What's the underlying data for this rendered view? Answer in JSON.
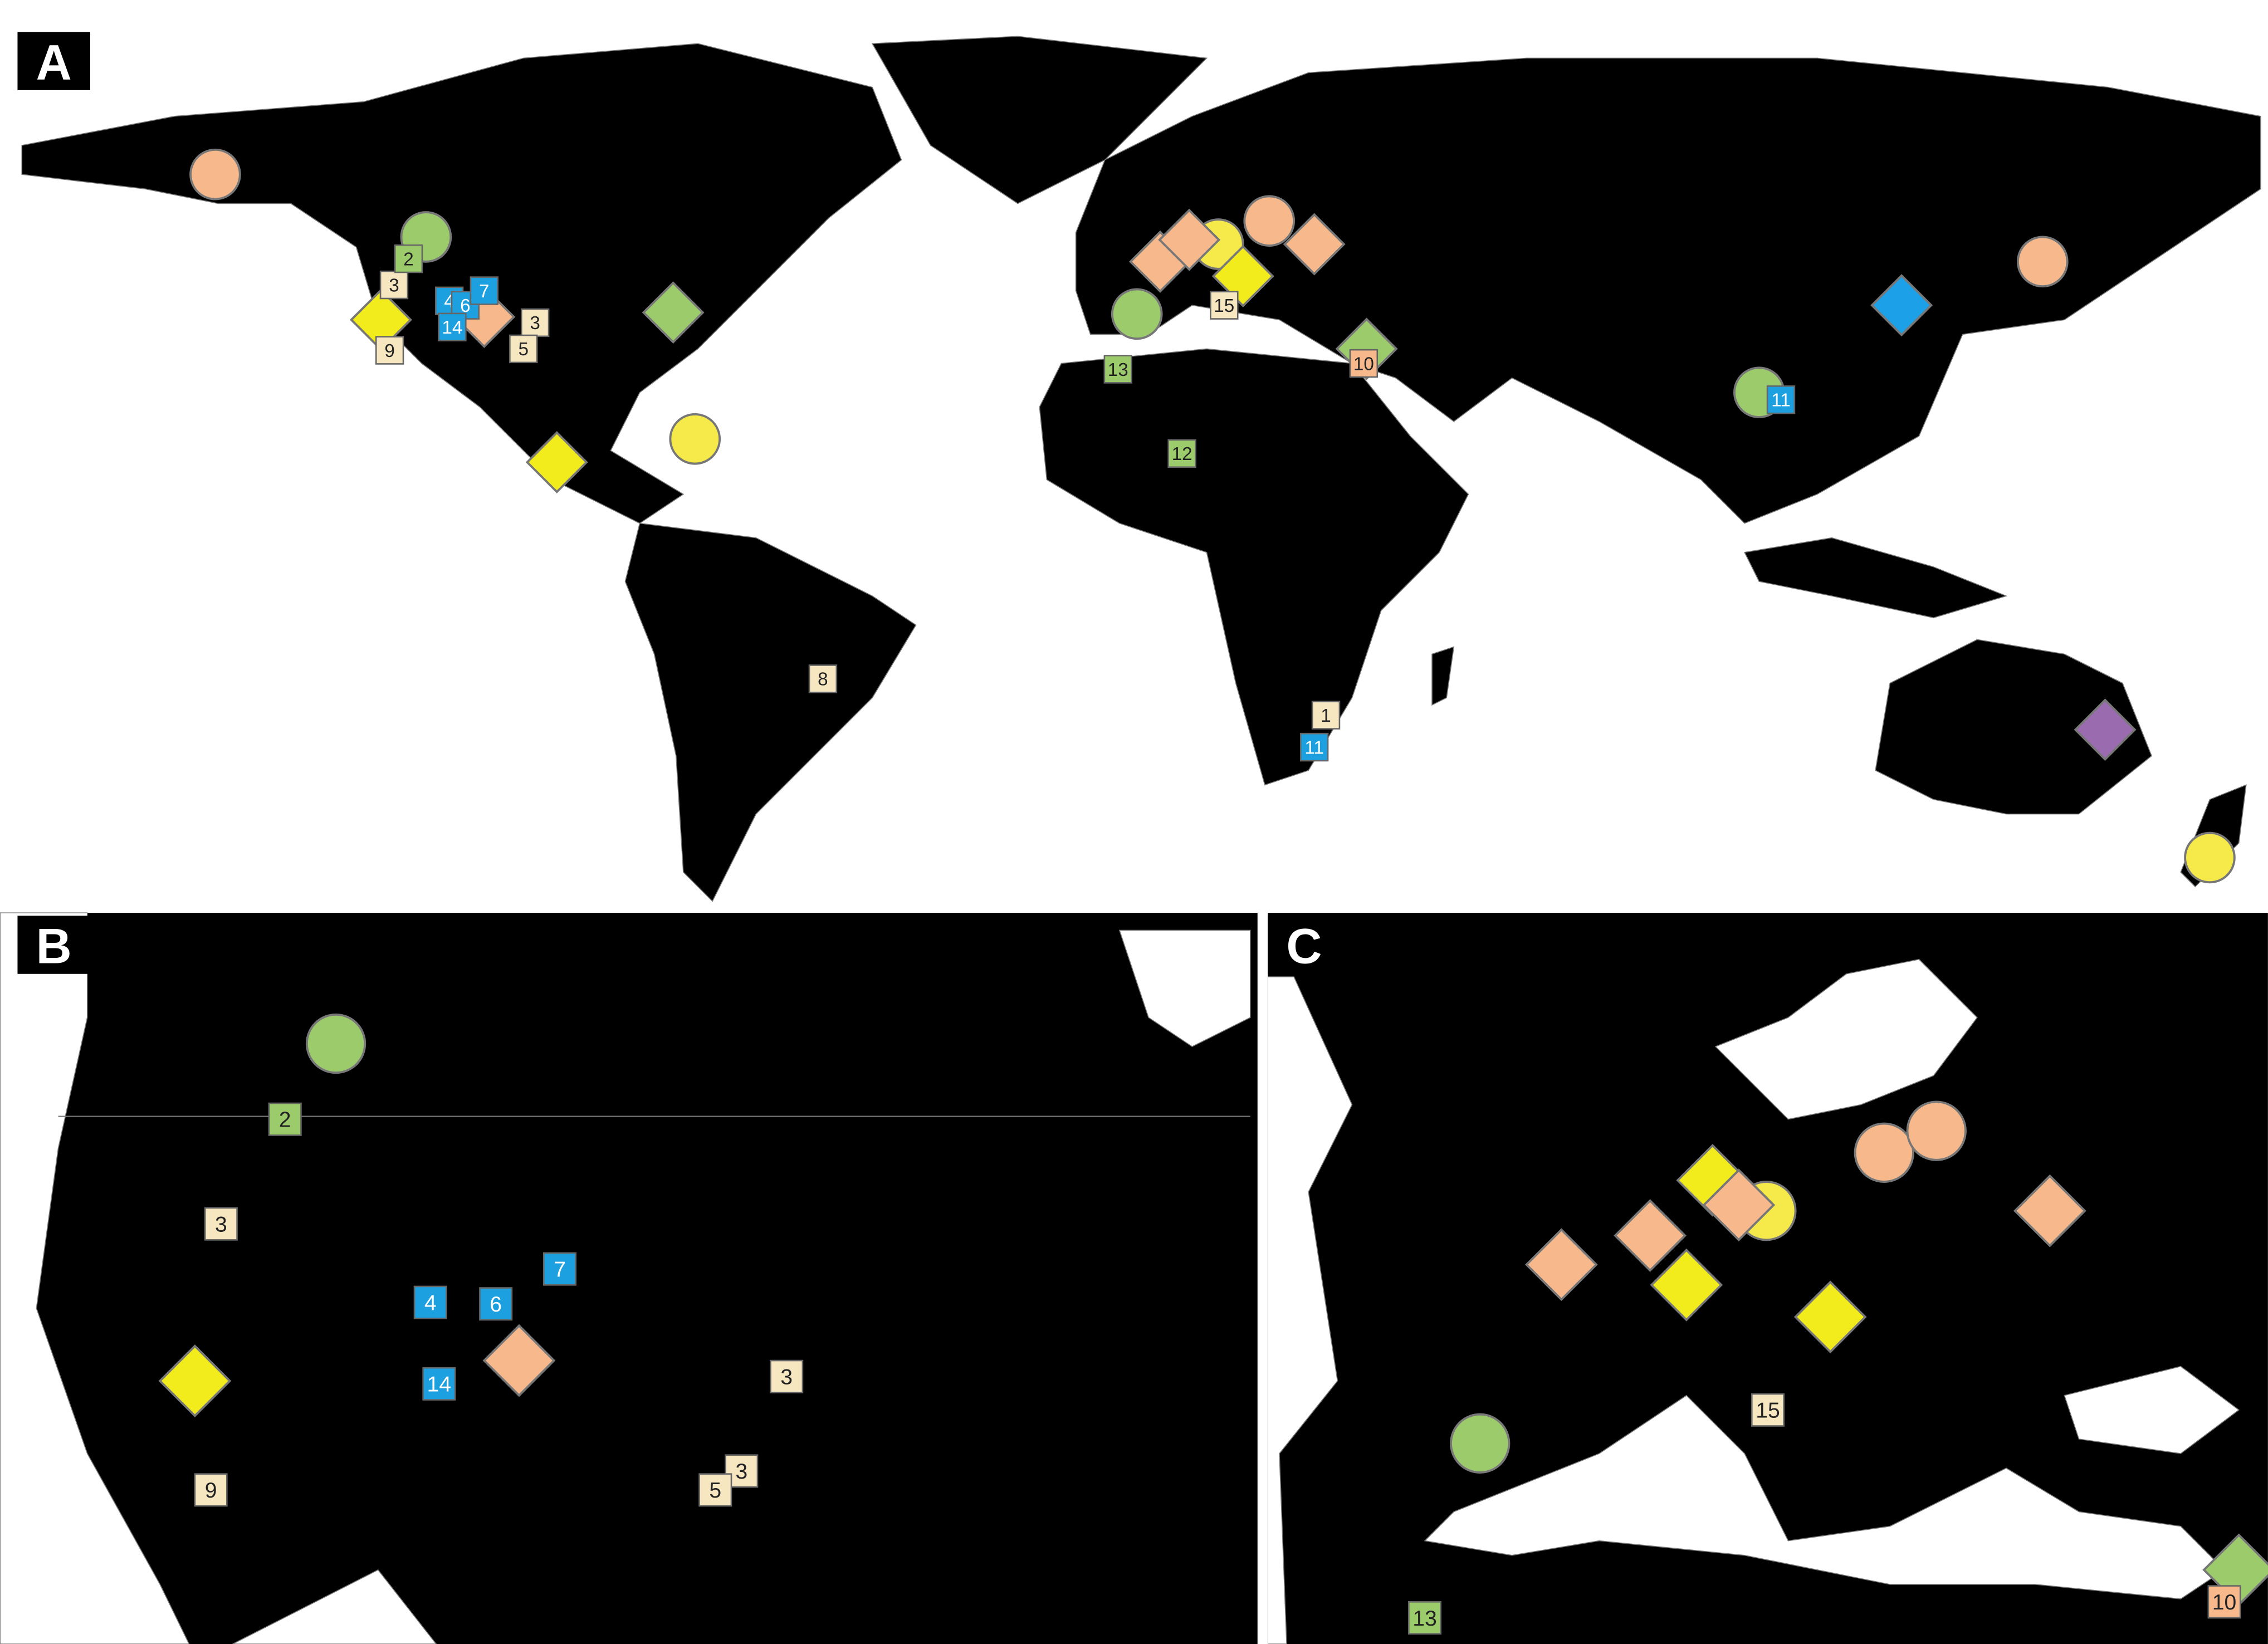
{
  "panels": [
    {
      "label": "A",
      "markers": [
        {
          "shape": "circle",
          "color": "#f7b98b"
        },
        {
          "shape": "circle",
          "color": "#9ccb6b"
        },
        {
          "shape": "circle",
          "color": "#f7b98b"
        },
        {
          "shape": "circle",
          "color": "#f5ea4a"
        },
        {
          "shape": "circle",
          "color": "#f7b98b"
        },
        {
          "shape": "circle",
          "color": "#9ccb6b"
        },
        {
          "shape": "circle",
          "color": "#f5ea4a"
        },
        {
          "shape": "circle",
          "color": "#9ccb6b"
        },
        {
          "shape": "circle",
          "color": "#f5ea4a"
        },
        {
          "shape": "diamond",
          "color": "#9ccb6b"
        },
        {
          "shape": "diamond",
          "color": "#f2ec1c"
        },
        {
          "shape": "diamond",
          "color": "#f7b98b"
        },
        {
          "shape": "diamond",
          "color": "#f7b98b"
        },
        {
          "shape": "diamond",
          "color": "#f7b98b"
        },
        {
          "shape": "diamond",
          "color": "#f7b98b"
        },
        {
          "shape": "diamond",
          "color": "#f2ec1c"
        },
        {
          "shape": "diamond",
          "color": "#9ccb6b"
        },
        {
          "shape": "diamond",
          "color": "#1ca0e8"
        },
        {
          "shape": "diamond",
          "color": "#9b6bb0"
        },
        {
          "shape": "diamond",
          "color": "#f2ec1c"
        }
      ],
      "tags": [
        {
          "text": "3",
          "color": "#f7e7c1"
        },
        {
          "text": "2",
          "color": "#9ccb6b"
        },
        {
          "text": "4",
          "color": "#1ca0e0"
        },
        {
          "text": "6",
          "color": "#1ca0e0"
        },
        {
          "text": "7",
          "color": "#1ca0e0"
        },
        {
          "text": "14",
          "color": "#1ca0e0"
        },
        {
          "text": "3",
          "color": "#f7e7c1"
        },
        {
          "text": "5",
          "color": "#f7e7c1"
        },
        {
          "text": "9",
          "color": "#f7e7c1"
        },
        {
          "text": "15",
          "color": "#f7e7c1"
        },
        {
          "text": "10",
          "color": "#f7b98b"
        },
        {
          "text": "13",
          "color": "#9ccb6b"
        },
        {
          "text": "12",
          "color": "#9ccb6b"
        },
        {
          "text": "11",
          "color": "#1ca0e0"
        },
        {
          "text": "8",
          "color": "#f7e7c1"
        },
        {
          "text": "1",
          "color": "#f7e7c1"
        },
        {
          "text": "11",
          "color": "#1ca0e0"
        }
      ]
    },
    {
      "label": "B",
      "markers": [
        {
          "shape": "circle",
          "color": "#9ccb6b"
        },
        {
          "shape": "diamond",
          "color": "#f2ec1c"
        },
        {
          "shape": "diamond",
          "color": "#f7b98b"
        }
      ],
      "tags": [
        {
          "text": "2",
          "color": "#9ccb6b"
        },
        {
          "text": "3",
          "color": "#f7e7c1"
        },
        {
          "text": "7",
          "color": "#1ca0e0"
        },
        {
          "text": "4",
          "color": "#1ca0e0"
        },
        {
          "text": "6",
          "color": "#1ca0e0"
        },
        {
          "text": "14",
          "color": "#1ca0e0"
        },
        {
          "text": "3",
          "color": "#f7e7c1"
        },
        {
          "text": "3",
          "color": "#f7e7c1"
        },
        {
          "text": "5",
          "color": "#f7e7c1"
        },
        {
          "text": "9",
          "color": "#f7e7c1"
        }
      ]
    },
    {
      "label": "C",
      "markers": [
        {
          "shape": "circle",
          "color": "#f7b98b"
        },
        {
          "shape": "circle",
          "color": "#f7b98b"
        },
        {
          "shape": "circle",
          "color": "#f5ea4a"
        },
        {
          "shape": "circle",
          "color": "#9ccb6b"
        },
        {
          "shape": "diamond",
          "color": "#f2ec1c"
        },
        {
          "shape": "diamond",
          "color": "#f7b98b"
        },
        {
          "shape": "diamond",
          "color": "#f7b98b"
        },
        {
          "shape": "diamond",
          "color": "#f7b98b"
        },
        {
          "shape": "diamond",
          "color": "#f2ec1c"
        },
        {
          "shape": "diamond",
          "color": "#f2ec1c"
        },
        {
          "shape": "diamond",
          "color": "#f7b98b"
        },
        {
          "shape": "diamond",
          "color": "#9ccb6b"
        }
      ],
      "tags": [
        {
          "text": "15",
          "color": "#f7e7c1"
        },
        {
          "text": "13",
          "color": "#9ccb6b"
        },
        {
          "text": "10",
          "color": "#f7b98b"
        }
      ]
    }
  ]
}
